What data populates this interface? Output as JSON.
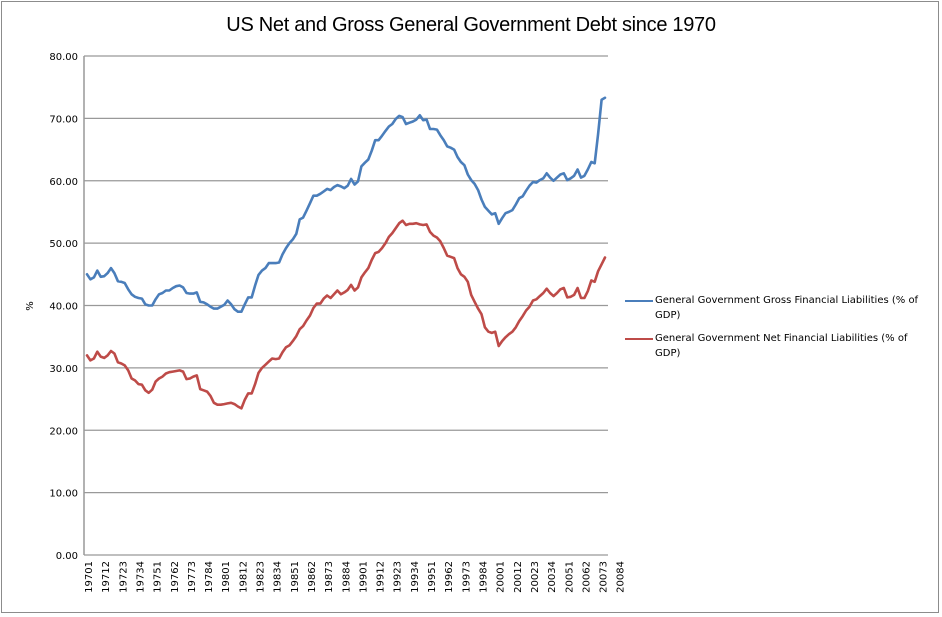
{
  "chart_data": {
    "type": "line",
    "title": "US Net and Gross General Government Debt since 1970",
    "xlabel": "",
    "ylabel": "%",
    "ylim": [
      0,
      80
    ],
    "yticks": [
      "0.00",
      "10.00",
      "20.00",
      "30.00",
      "40.00",
      "50.00",
      "60.00",
      "70.00",
      "80.00"
    ],
    "ytick_values": [
      0,
      10,
      20,
      30,
      40,
      50,
      60,
      70,
      80
    ],
    "grid": true,
    "legend_position": "right",
    "x_start": "1970Q1",
    "x_frequency": "quarterly",
    "x_tick_every": 5,
    "xtick_labels": [
      "19701",
      "19712",
      "19723",
      "19734",
      "19751",
      "19762",
      "19773",
      "19784",
      "19801",
      "19812",
      "19823",
      "19834",
      "19851",
      "19862",
      "19873",
      "19884",
      "19901",
      "19912",
      "19923",
      "19934",
      "19951",
      "19962",
      "19973",
      "19984",
      "20001",
      "20012",
      "20023",
      "20034",
      "20051",
      "20062",
      "20073",
      "20084"
    ],
    "series": [
      {
        "name": "General Government Gross Financial Liabilities (% of GDP)",
        "color": "#4a7ebb",
        "values": [
          45.0,
          44.2,
          44.5,
          45.6,
          44.6,
          44.7,
          45.2,
          46.0,
          45.2,
          43.9,
          43.8,
          43.6,
          42.6,
          41.8,
          41.4,
          41.2,
          41.1,
          40.2,
          40.0,
          40.0,
          41.0,
          41.8,
          42.0,
          42.4,
          42.4,
          42.8,
          43.1,
          43.2,
          42.9,
          42.0,
          41.9,
          41.9,
          42.1,
          40.6,
          40.5,
          40.2,
          39.8,
          39.5,
          39.5,
          39.8,
          40.1,
          40.8,
          40.2,
          39.4,
          39.0,
          39.0,
          40.2,
          41.3,
          41.3,
          43.2,
          44.9,
          45.6,
          46.0,
          46.8,
          46.8,
          46.8,
          46.9,
          48.2,
          49.2,
          50.0,
          50.6,
          51.5,
          53.8,
          54.1,
          55.2,
          56.4,
          57.6,
          57.6,
          57.9,
          58.3,
          58.7,
          58.5,
          59.0,
          59.3,
          59.1,
          58.8,
          59.2,
          60.3,
          59.4,
          59.9,
          62.3,
          62.9,
          63.4,
          64.8,
          66.5,
          66.5,
          67.2,
          68.0,
          68.7,
          69.1,
          69.9,
          70.4,
          70.2,
          69.1,
          69.3,
          69.5,
          69.8,
          70.5,
          69.7,
          69.8,
          68.3,
          68.3,
          68.2,
          67.3,
          66.5,
          65.5,
          65.3,
          65.0,
          63.8,
          63.0,
          62.5,
          61.0,
          60.1,
          59.5,
          58.5,
          57.0,
          55.8,
          55.2,
          54.6,
          54.8,
          53.1,
          54.0,
          54.8,
          55.0,
          55.3,
          56.2,
          57.2,
          57.5,
          58.4,
          59.2,
          59.8,
          59.7,
          60.1,
          60.4,
          61.2,
          60.5,
          60.0,
          60.5,
          61.0,
          61.2,
          60.1,
          60.4,
          60.8,
          61.8,
          60.5,
          60.8,
          61.8,
          63.0,
          62.8,
          67.5,
          73.0,
          73.3
        ]
      },
      {
        "name": "General Government Net Financial Liabilities (% of GDP)",
        "color": "#be4b48",
        "values": [
          32.0,
          31.2,
          31.5,
          32.6,
          31.8,
          31.6,
          32.0,
          32.7,
          32.3,
          30.9,
          30.7,
          30.4,
          29.6,
          28.3,
          28.0,
          27.4,
          27.3,
          26.4,
          26.0,
          26.5,
          27.8,
          28.3,
          28.6,
          29.1,
          29.3,
          29.4,
          29.5,
          29.6,
          29.4,
          28.2,
          28.3,
          28.6,
          28.8,
          26.6,
          26.4,
          26.2,
          25.5,
          24.4,
          24.1,
          24.1,
          24.2,
          24.3,
          24.4,
          24.2,
          23.8,
          23.5,
          24.9,
          25.9,
          25.9,
          27.4,
          29.2,
          30.0,
          30.5,
          31.0,
          31.5,
          31.4,
          31.5,
          32.5,
          33.3,
          33.6,
          34.3,
          35.1,
          36.2,
          36.7,
          37.6,
          38.4,
          39.6,
          40.3,
          40.3,
          41.1,
          41.6,
          41.2,
          41.8,
          42.4,
          41.8,
          42.1,
          42.5,
          43.3,
          42.4,
          42.9,
          44.5,
          45.3,
          46.0,
          47.3,
          48.4,
          48.6,
          49.2,
          50.0,
          51.0,
          51.6,
          52.4,
          53.2,
          53.6,
          52.9,
          53.1,
          53.1,
          53.2,
          53.0,
          52.9,
          53.0,
          51.8,
          51.2,
          50.9,
          50.3,
          49.2,
          48.0,
          47.8,
          47.6,
          46.0,
          45.0,
          44.6,
          43.8,
          41.7,
          40.6,
          39.5,
          38.6,
          36.5,
          35.8,
          35.6,
          35.8,
          33.5,
          34.3,
          34.9,
          35.4,
          35.8,
          36.5,
          37.5,
          38.3,
          39.2,
          39.8,
          40.8,
          41.0,
          41.5,
          42.0,
          42.7,
          42.0,
          41.5,
          42.0,
          42.6,
          42.8,
          41.3,
          41.4,
          41.7,
          42.8,
          41.2,
          41.2,
          42.3,
          44.0,
          43.8,
          45.5,
          46.6,
          47.7
        ]
      }
    ]
  }
}
